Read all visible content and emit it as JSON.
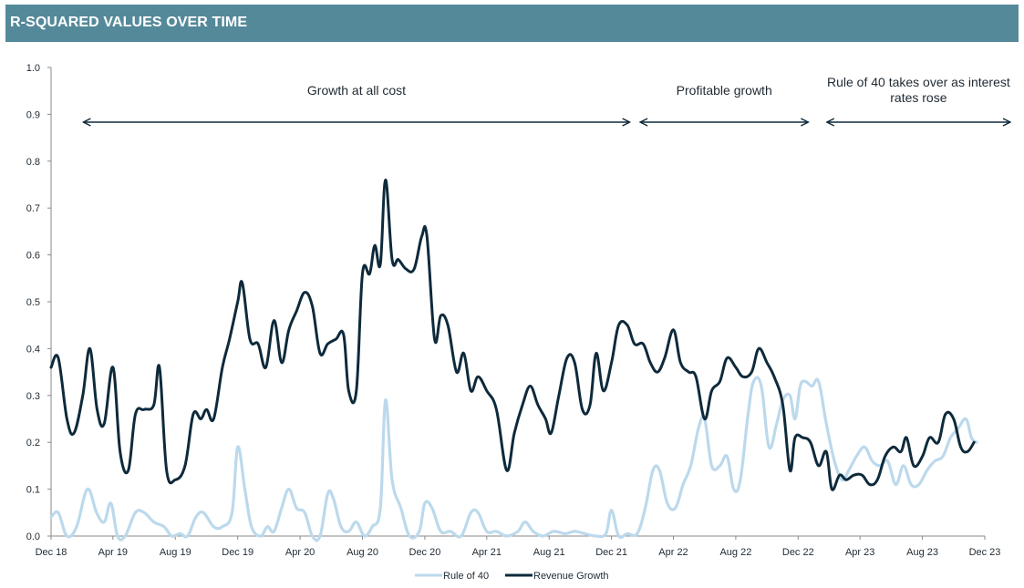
{
  "header": {
    "title": "R-SQUARED VALUES OVER TIME"
  },
  "chart_data": {
    "type": "line",
    "title": "R-SQUARED VALUES OVER TIME",
    "xlabel": "",
    "ylabel": "",
    "ylim": [
      0,
      1.0
    ],
    "yticks": [
      "0.0",
      "0.1",
      "0.2",
      "0.3",
      "0.4",
      "0.5",
      "0.6",
      "0.7",
      "0.8",
      "0.9",
      "1.0"
    ],
    "xticks": [
      "Dec 18",
      "Apr 19",
      "Aug 19",
      "Dec 19",
      "Apr 20",
      "Aug 20",
      "Dec 20",
      "Apr 21",
      "Aug 21",
      "Dec 21",
      "Apr 22",
      "Aug 22",
      "Dec 22",
      "Apr 23",
      "Aug 23",
      "Dec 23"
    ],
    "xlim": [
      "2018-12-01",
      "2023-12-01"
    ],
    "grid": false,
    "legend": "bottom",
    "series": [
      {
        "name": "Rule of 40",
        "color": "#bcd9ec",
        "points": [
          [
            "2018-12-01",
            0.04
          ],
          [
            "2018-12-15",
            0.05
          ],
          [
            "2019-01-01",
            0.0
          ],
          [
            "2019-01-20",
            0.02
          ],
          [
            "2019-02-10",
            0.1
          ],
          [
            "2019-02-28",
            0.05
          ],
          [
            "2019-03-15",
            0.03
          ],
          [
            "2019-03-28",
            0.07
          ],
          [
            "2019-04-10",
            0.0
          ],
          [
            "2019-04-25",
            0.0
          ],
          [
            "2019-05-15",
            0.05
          ],
          [
            "2019-06-01",
            0.05
          ],
          [
            "2019-06-20",
            0.03
          ],
          [
            "2019-07-10",
            0.02
          ],
          [
            "2019-07-25",
            0.0
          ],
          [
            "2019-08-10",
            0.005
          ],
          [
            "2019-08-25",
            0.0
          ],
          [
            "2019-09-10",
            0.04
          ],
          [
            "2019-09-25",
            0.05
          ],
          [
            "2019-10-15",
            0.02
          ],
          [
            "2019-11-01",
            0.02
          ],
          [
            "2019-11-20",
            0.05
          ],
          [
            "2019-12-01",
            0.19
          ],
          [
            "2019-12-15",
            0.1
          ],
          [
            "2019-12-28",
            0.02
          ],
          [
            "2020-01-15",
            0.0
          ],
          [
            "2020-01-28",
            0.02
          ],
          [
            "2020-02-10",
            0.01
          ],
          [
            "2020-02-25",
            0.06
          ],
          [
            "2020-03-10",
            0.1
          ],
          [
            "2020-03-25",
            0.06
          ],
          [
            "2020-04-10",
            0.05
          ],
          [
            "2020-04-25",
            0.0
          ],
          [
            "2020-05-10",
            0.0
          ],
          [
            "2020-05-25",
            0.09
          ],
          [
            "2020-06-05",
            0.08
          ],
          [
            "2020-06-20",
            0.02
          ],
          [
            "2020-07-05",
            0.01
          ],
          [
            "2020-07-20",
            0.03
          ],
          [
            "2020-08-05",
            0.0
          ],
          [
            "2020-08-20",
            0.02
          ],
          [
            "2020-09-05",
            0.06
          ],
          [
            "2020-09-15",
            0.29
          ],
          [
            "2020-09-28",
            0.12
          ],
          [
            "2020-10-15",
            0.06
          ],
          [
            "2020-11-01",
            0.0
          ],
          [
            "2020-11-20",
            0.01
          ],
          [
            "2020-12-01",
            0.07
          ],
          [
            "2020-12-15",
            0.06
          ],
          [
            "2021-01-01",
            0.01
          ],
          [
            "2021-01-20",
            0.01
          ],
          [
            "2021-02-10",
            0.0
          ],
          [
            "2021-03-01",
            0.05
          ],
          [
            "2021-03-15",
            0.05
          ],
          [
            "2021-04-01",
            0.01
          ],
          [
            "2021-04-20",
            0.01
          ],
          [
            "2021-05-10",
            0.0
          ],
          [
            "2021-06-01",
            0.01
          ],
          [
            "2021-06-15",
            0.03
          ],
          [
            "2021-07-01",
            0.01
          ],
          [
            "2021-07-20",
            0.0
          ],
          [
            "2021-08-10",
            0.01
          ],
          [
            "2021-09-01",
            0.005
          ],
          [
            "2021-09-20",
            0.01
          ],
          [
            "2021-10-10",
            0.005
          ],
          [
            "2021-11-01",
            0.0
          ],
          [
            "2021-11-20",
            0.005
          ],
          [
            "2021-12-01",
            0.055
          ],
          [
            "2021-12-15",
            0.0
          ],
          [
            "2022-01-01",
            0.005
          ],
          [
            "2022-01-20",
            0.005
          ],
          [
            "2022-02-05",
            0.06
          ],
          [
            "2022-02-20",
            0.14
          ],
          [
            "2022-03-05",
            0.14
          ],
          [
            "2022-03-20",
            0.07
          ],
          [
            "2022-04-05",
            0.06
          ],
          [
            "2022-04-20",
            0.11
          ],
          [
            "2022-05-05",
            0.15
          ],
          [
            "2022-05-20",
            0.23
          ],
          [
            "2022-06-01",
            0.25
          ],
          [
            "2022-06-15",
            0.15
          ],
          [
            "2022-07-01",
            0.15
          ],
          [
            "2022-07-15",
            0.17
          ],
          [
            "2022-07-28",
            0.1
          ],
          [
            "2022-08-10",
            0.12
          ],
          [
            "2022-08-25",
            0.26
          ],
          [
            "2022-09-05",
            0.33
          ],
          [
            "2022-09-20",
            0.32
          ],
          [
            "2022-10-05",
            0.19
          ],
          [
            "2022-10-20",
            0.24
          ],
          [
            "2022-11-01",
            0.29
          ],
          [
            "2022-11-15",
            0.3
          ],
          [
            "2022-11-25",
            0.25
          ],
          [
            "2022-12-05",
            0.32
          ],
          [
            "2022-12-15",
            0.33
          ],
          [
            "2022-12-28",
            0.32
          ],
          [
            "2023-01-10",
            0.33
          ],
          [
            "2023-01-25",
            0.24
          ],
          [
            "2023-02-10",
            0.16
          ],
          [
            "2023-02-25",
            0.12
          ],
          [
            "2023-03-10",
            0.14
          ],
          [
            "2023-03-25",
            0.17
          ],
          [
            "2023-04-10",
            0.19
          ],
          [
            "2023-04-25",
            0.16
          ],
          [
            "2023-05-10",
            0.15
          ],
          [
            "2023-05-25",
            0.16
          ],
          [
            "2023-06-10",
            0.11
          ],
          [
            "2023-06-25",
            0.15
          ],
          [
            "2023-07-10",
            0.11
          ],
          [
            "2023-07-25",
            0.11
          ],
          [
            "2023-08-10",
            0.14
          ],
          [
            "2023-08-25",
            0.16
          ],
          [
            "2023-09-10",
            0.17
          ],
          [
            "2023-09-25",
            0.21
          ],
          [
            "2023-10-10",
            0.23
          ],
          [
            "2023-10-25",
            0.25
          ],
          [
            "2023-11-05",
            0.21
          ],
          [
            "2023-11-15",
            0.2
          ]
        ]
      },
      {
        "name": "Revenue Growth",
        "color": "#0e2a3b",
        "points": [
          [
            "2018-12-01",
            0.36
          ],
          [
            "2018-12-15",
            0.38
          ],
          [
            "2019-01-01",
            0.25
          ],
          [
            "2019-01-15",
            0.22
          ],
          [
            "2019-02-01",
            0.3
          ],
          [
            "2019-02-15",
            0.4
          ],
          [
            "2019-03-01",
            0.27
          ],
          [
            "2019-03-15",
            0.24
          ],
          [
            "2019-04-01",
            0.36
          ],
          [
            "2019-04-15",
            0.18
          ],
          [
            "2019-05-01",
            0.14
          ],
          [
            "2019-05-15",
            0.26
          ],
          [
            "2019-06-01",
            0.27
          ],
          [
            "2019-06-20",
            0.28
          ],
          [
            "2019-07-01",
            0.36
          ],
          [
            "2019-07-15",
            0.14
          ],
          [
            "2019-08-01",
            0.12
          ],
          [
            "2019-08-20",
            0.15
          ],
          [
            "2019-09-05",
            0.26
          ],
          [
            "2019-09-20",
            0.25
          ],
          [
            "2019-10-01",
            0.27
          ],
          [
            "2019-10-15",
            0.25
          ],
          [
            "2019-11-01",
            0.36
          ],
          [
            "2019-11-15",
            0.42
          ],
          [
            "2019-12-01",
            0.5
          ],
          [
            "2019-12-10",
            0.54
          ],
          [
            "2019-12-25",
            0.42
          ],
          [
            "2020-01-10",
            0.41
          ],
          [
            "2020-01-25",
            0.36
          ],
          [
            "2020-02-10",
            0.46
          ],
          [
            "2020-02-25",
            0.37
          ],
          [
            "2020-03-10",
            0.44
          ],
          [
            "2020-03-25",
            0.48
          ],
          [
            "2020-04-10",
            0.52
          ],
          [
            "2020-04-25",
            0.49
          ],
          [
            "2020-05-10",
            0.39
          ],
          [
            "2020-05-25",
            0.41
          ],
          [
            "2020-06-10",
            0.42
          ],
          [
            "2020-06-25",
            0.43
          ],
          [
            "2020-07-05",
            0.31
          ],
          [
            "2020-07-20",
            0.31
          ],
          [
            "2020-08-01",
            0.56
          ],
          [
            "2020-08-15",
            0.56
          ],
          [
            "2020-08-25",
            0.62
          ],
          [
            "2020-09-05",
            0.58
          ],
          [
            "2020-09-15",
            0.76
          ],
          [
            "2020-09-28",
            0.59
          ],
          [
            "2020-10-10",
            0.59
          ],
          [
            "2020-10-25",
            0.57
          ],
          [
            "2020-11-10",
            0.57
          ],
          [
            "2020-11-25",
            0.64
          ],
          [
            "2020-12-05",
            0.64
          ],
          [
            "2020-12-20",
            0.42
          ],
          [
            "2021-01-01",
            0.47
          ],
          [
            "2021-01-15",
            0.45
          ],
          [
            "2021-02-01",
            0.35
          ],
          [
            "2021-02-15",
            0.39
          ],
          [
            "2021-03-01",
            0.31
          ],
          [
            "2021-03-15",
            0.34
          ],
          [
            "2021-04-01",
            0.31
          ],
          [
            "2021-04-20",
            0.27
          ],
          [
            "2021-05-10",
            0.14
          ],
          [
            "2021-05-25",
            0.22
          ],
          [
            "2021-06-10",
            0.28
          ],
          [
            "2021-06-25",
            0.32
          ],
          [
            "2021-07-10",
            0.28
          ],
          [
            "2021-07-25",
            0.25
          ],
          [
            "2021-08-05",
            0.22
          ],
          [
            "2021-08-20",
            0.3
          ],
          [
            "2021-09-05",
            0.38
          ],
          [
            "2021-09-20",
            0.37
          ],
          [
            "2021-10-05",
            0.27
          ],
          [
            "2021-10-20",
            0.28
          ],
          [
            "2021-11-01",
            0.39
          ],
          [
            "2021-11-15",
            0.31
          ],
          [
            "2021-12-01",
            0.37
          ],
          [
            "2021-12-15",
            0.45
          ],
          [
            "2022-01-01",
            0.45
          ],
          [
            "2022-01-15",
            0.41
          ],
          [
            "2022-02-01",
            0.41
          ],
          [
            "2022-02-15",
            0.37
          ],
          [
            "2022-03-01",
            0.35
          ],
          [
            "2022-03-15",
            0.38
          ],
          [
            "2022-04-01",
            0.44
          ],
          [
            "2022-04-15",
            0.37
          ],
          [
            "2022-05-01",
            0.35
          ],
          [
            "2022-05-15",
            0.34
          ],
          [
            "2022-06-01",
            0.25
          ],
          [
            "2022-06-15",
            0.31
          ],
          [
            "2022-07-01",
            0.33
          ],
          [
            "2022-07-15",
            0.38
          ],
          [
            "2022-08-01",
            0.36
          ],
          [
            "2022-08-15",
            0.34
          ],
          [
            "2022-09-01",
            0.35
          ],
          [
            "2022-09-15",
            0.4
          ],
          [
            "2022-10-01",
            0.37
          ],
          [
            "2022-10-15",
            0.34
          ],
          [
            "2022-11-01",
            0.28
          ],
          [
            "2022-11-15",
            0.14
          ],
          [
            "2022-11-25",
            0.21
          ],
          [
            "2022-12-10",
            0.21
          ],
          [
            "2022-12-25",
            0.2
          ],
          [
            "2023-01-10",
            0.15
          ],
          [
            "2023-01-25",
            0.18
          ],
          [
            "2023-02-05",
            0.1
          ],
          [
            "2023-02-20",
            0.13
          ],
          [
            "2023-03-05",
            0.12
          ],
          [
            "2023-03-20",
            0.13
          ],
          [
            "2023-04-05",
            0.13
          ],
          [
            "2023-04-20",
            0.11
          ],
          [
            "2023-05-05",
            0.12
          ],
          [
            "2023-05-20",
            0.17
          ],
          [
            "2023-06-05",
            0.19
          ],
          [
            "2023-06-20",
            0.18
          ],
          [
            "2023-07-01",
            0.21
          ],
          [
            "2023-07-15",
            0.15
          ],
          [
            "2023-08-01",
            0.17
          ],
          [
            "2023-08-15",
            0.21
          ],
          [
            "2023-09-01",
            0.2
          ],
          [
            "2023-09-15",
            0.26
          ],
          [
            "2023-10-01",
            0.25
          ],
          [
            "2023-10-15",
            0.19
          ],
          [
            "2023-10-28",
            0.18
          ],
          [
            "2023-11-10",
            0.2
          ]
        ]
      }
    ],
    "annotations": [
      {
        "text": "Growth at all cost",
        "from": "2019-01-01",
        "to": "2021-12-01"
      },
      {
        "text": "Profitable growth",
        "from": "2021-12-25",
        "to": "2022-11-15"
      },
      {
        "text": "Rule of 40 takes over as interest",
        "text2": "rates rose",
        "from": "2022-12-25",
        "to": "2023-12-20"
      }
    ]
  }
}
